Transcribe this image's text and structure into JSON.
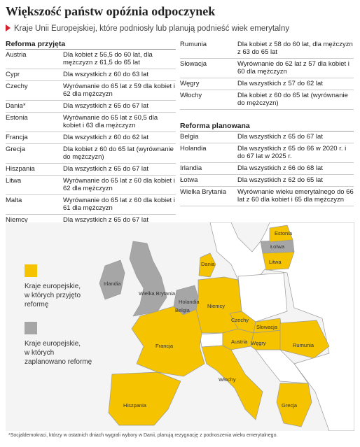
{
  "title": "Większość państw opóźnia odpoczynek",
  "subtitle": "Kraje Unii Europejskiej, które podniosły lub planują podnieść wiek emerytalny",
  "table": {
    "columns": [
      {
        "sections": [
          {
            "title": "Reforma przyjęta",
            "rows": [
              {
                "country": "Austria",
                "text": "Dla kobiet z 56,5 do 60 lat, dla mężczyzn z 61,5 do 65 lat"
              },
              {
                "country": "Cypr",
                "text": "Dla wszystkich z 60 do 63 lat"
              },
              {
                "country": "Czechy",
                "text": "Wyrównanie do 65 lat z 59 dla kobiet i 62 dla mężczyzn"
              },
              {
                "country": "Dania*",
                "text": "Dla wszystkich z 65 do 67 lat"
              },
              {
                "country": "Estonia",
                "text": "Wyrównanie do 65 lat z 60,5 dla kobiet i 63 dla mężczyzn"
              },
              {
                "country": "Francja",
                "text": "Dla wszystkich z 60 do 62 lat"
              },
              {
                "country": "Grecja",
                "text": "Dla kobiet z 60 do 65 lat (wyrównanie do mężczyzn)"
              },
              {
                "country": "Hiszpania",
                "text": "Dla wszystkich z 65 do 67 lat"
              },
              {
                "country": "Litwa",
                "text": "Wyrównanie do 65 lat z 60 dla kobiet i 62 dla mężczyzn"
              },
              {
                "country": "Malta",
                "text": "Wyrównanie do 65 lat z 60 dla kobiet i 61 dla mężczyzn"
              },
              {
                "country": "Niemcy",
                "text": "Dla wszystkich z 65 do 67 lat"
              }
            ]
          }
        ]
      },
      {
        "sections": [
          {
            "rows": [
              {
                "country": "Rumunia",
                "text": "Dla kobiet z 58 do 60 lat, dla mężczyzn z 63 do 65 lat"
              },
              {
                "country": "Słowacja",
                "text": "Wyrównanie do 62 lat z 57 dla kobiet i 60 dla mężczyzn"
              },
              {
                "country": "Węgry",
                "text": "Dla wszystkich z 57 do 62 lat"
              },
              {
                "country": "Włochy",
                "text": "Dla kobiet z 60 do 65 lat (wyrównanie do mężczyzn)"
              }
            ]
          },
          {
            "title": "Reforma planowana",
            "rows": [
              {
                "country": "Belgia",
                "text": "Dla wszystkich z 65 do 67 lat"
              },
              {
                "country": "Holandia",
                "text": "Dla wszystkich z 65 do 66 w 2020 r. i do 67 lat w 2025 r."
              },
              {
                "country": "Irlandia",
                "text": "Dla wszystkich z 66 do 68 lat"
              },
              {
                "country": "Łotwa",
                "text": "Dla wszystkich z 62 do 65 lat"
              },
              {
                "country": "Wielka Brytania",
                "text": "Wyrównanie wieku emerytalnego do 66 lat z 60 dla kobiet i 65 dla mężczyzn"
              }
            ]
          }
        ]
      }
    ]
  },
  "map": {
    "legend": [
      "Kraje europejskie, w których przyjęto reformę",
      "Kraje europejskie, w których zaplanowano reformę"
    ],
    "labels": [
      "Estonia",
      "Łotwa",
      "Litwa",
      "Dania",
      "Irlandia",
      "Wielka Brytania",
      "Holandia",
      "Belgia",
      "Niemcy",
      "Czechy",
      "Słowacja",
      "Austria",
      "Węgry",
      "Rumunia",
      "Francja",
      "Włochy",
      "Hiszpania",
      "Grecja"
    ]
  },
  "footnote": "*Socjaldemokraci, którzy w ostatnich dniach wygrali wybory w Danii, planują rezygnację z podnoszenia wieku emerytalnego."
}
